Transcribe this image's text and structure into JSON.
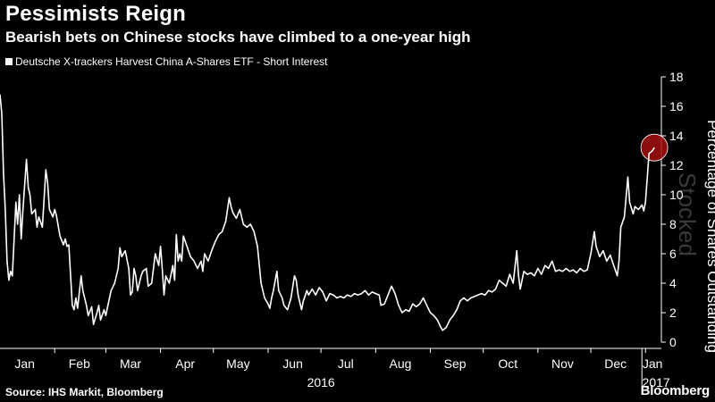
{
  "header": {
    "title": "Pessimists Reign",
    "subtitle": "Bearish bets on Chinese stocks have climbed to a one-year high"
  },
  "legend": {
    "label": "Deutsche X-trackers Harvest China A-Shares ETF - Short Interest"
  },
  "footer": {
    "source": "Source: IHS Markit, Bloomberg",
    "brand": "Bloomberg"
  },
  "watermark": "Stocked",
  "chart_data": {
    "type": "line",
    "title": "Pessimists Reign",
    "ylabel": "Percentage of Shares Outstanding",
    "ylim": [
      0,
      18
    ],
    "yticks": [
      0,
      2,
      4,
      6,
      8,
      10,
      12,
      14,
      16,
      18
    ],
    "xlim": [
      "2016-01-01",
      "2017-01-10"
    ],
    "xticks": [
      {
        "date": "2016-01-15",
        "label": "Jan"
      },
      {
        "date": "2016-02-15",
        "label": "Feb"
      },
      {
        "date": "2016-03-15",
        "label": "Mar"
      },
      {
        "date": "2016-04-15",
        "label": "Apr"
      },
      {
        "date": "2016-05-15",
        "label": "May"
      },
      {
        "date": "2016-06-15",
        "label": "Jun"
      },
      {
        "date": "2016-07-15",
        "label": "Jul"
      },
      {
        "date": "2016-08-15",
        "label": "Aug"
      },
      {
        "date": "2016-09-15",
        "label": "Sep"
      },
      {
        "date": "2016-10-15",
        "label": "Oct"
      },
      {
        "date": "2016-11-15",
        "label": "Nov"
      },
      {
        "date": "2016-12-15",
        "label": "Dec"
      },
      {
        "date": "2017-01-05",
        "label": "Jan"
      }
    ],
    "year_labels": [
      {
        "date": "2016-07-01",
        "label": "2016"
      },
      {
        "date": "2017-01-05",
        "label": "2017"
      }
    ],
    "grid": false,
    "highlight": {
      "date": "2017-01-06",
      "value": 13.2
    },
    "series": [
      {
        "name": "Deutsche X-trackers Harvest China A-Shares ETF - Short Interest",
        "color": "#ffffff",
        "points": [
          [
            "2016-01-01",
            16.8
          ],
          [
            "2016-01-02",
            15.5
          ],
          [
            "2016-01-03",
            11.5
          ],
          [
            "2016-01-04",
            9.0
          ],
          [
            "2016-01-05",
            5.5
          ],
          [
            "2016-01-06",
            4.2
          ],
          [
            "2016-01-07",
            4.8
          ],
          [
            "2016-01-08",
            4.5
          ],
          [
            "2016-01-10",
            9.5
          ],
          [
            "2016-01-11",
            8.0
          ],
          [
            "2016-01-12",
            10.0
          ],
          [
            "2016-01-13",
            7.0
          ],
          [
            "2016-01-14",
            9.0
          ],
          [
            "2016-01-16",
            12.4
          ],
          [
            "2016-01-17",
            10.5
          ],
          [
            "2016-01-18",
            10.0
          ],
          [
            "2016-01-19",
            8.7
          ],
          [
            "2016-01-21",
            9.0
          ],
          [
            "2016-01-22",
            7.8
          ],
          [
            "2016-01-23",
            8.5
          ],
          [
            "2016-01-25",
            7.8
          ],
          [
            "2016-01-27",
            11.7
          ],
          [
            "2016-01-28",
            10.8
          ],
          [
            "2016-01-29",
            9.0
          ],
          [
            "2016-01-31",
            8.5
          ],
          [
            "2016-02-01",
            9.0
          ],
          [
            "2016-02-02",
            8.6
          ],
          [
            "2016-02-04",
            7.2
          ],
          [
            "2016-02-06",
            6.6
          ],
          [
            "2016-02-07",
            7.0
          ],
          [
            "2016-02-08",
            6.5
          ],
          [
            "2016-02-09",
            6.6
          ],
          [
            "2016-02-11",
            2.5
          ],
          [
            "2016-02-12",
            2.2
          ],
          [
            "2016-02-13",
            3.0
          ],
          [
            "2016-02-14",
            2.3
          ],
          [
            "2016-02-16",
            4.5
          ],
          [
            "2016-02-17",
            3.5
          ],
          [
            "2016-02-19",
            2.5
          ],
          [
            "2016-02-20",
            1.8
          ],
          [
            "2016-02-22",
            2.4
          ],
          [
            "2016-02-23",
            1.2
          ],
          [
            "2016-02-25",
            2.0
          ],
          [
            "2016-02-26",
            2.5
          ],
          [
            "2016-02-27",
            1.5
          ],
          [
            "2016-02-29",
            2.2
          ],
          [
            "2016-03-01",
            1.8
          ],
          [
            "2016-03-02",
            2.4
          ],
          [
            "2016-03-04",
            3.5
          ],
          [
            "2016-03-06",
            4.0
          ],
          [
            "2016-03-08",
            5.0
          ],
          [
            "2016-03-09",
            6.4
          ],
          [
            "2016-03-10",
            5.8
          ],
          [
            "2016-03-12",
            6.2
          ],
          [
            "2016-03-14",
            5.0
          ],
          [
            "2016-03-15",
            3.2
          ],
          [
            "2016-03-16",
            3.4
          ],
          [
            "2016-03-17",
            5.0
          ],
          [
            "2016-03-18",
            4.5
          ],
          [
            "2016-03-19",
            3.5
          ],
          [
            "2016-03-21",
            4.5
          ],
          [
            "2016-03-22",
            4.8
          ],
          [
            "2016-03-24",
            5.0
          ],
          [
            "2016-03-25",
            3.8
          ],
          [
            "2016-03-27",
            4.0
          ],
          [
            "2016-03-29",
            6.0
          ],
          [
            "2016-03-31",
            5.2
          ],
          [
            "2016-04-01",
            6.5
          ],
          [
            "2016-04-02",
            5.0
          ],
          [
            "2016-04-03",
            3.2
          ],
          [
            "2016-04-04",
            4.5
          ],
          [
            "2016-04-06",
            4.0
          ],
          [
            "2016-04-08",
            5.2
          ],
          [
            "2016-04-09",
            4.2
          ],
          [
            "2016-04-10",
            7.3
          ],
          [
            "2016-04-11",
            5.5
          ],
          [
            "2016-04-12",
            6.0
          ],
          [
            "2016-04-13",
            5.5
          ],
          [
            "2016-04-14",
            7.2
          ],
          [
            "2016-04-16",
            6.5
          ],
          [
            "2016-04-18",
            5.8
          ],
          [
            "2016-04-20",
            5.5
          ],
          [
            "2016-04-22",
            5.0
          ],
          [
            "2016-04-24",
            5.5
          ],
          [
            "2016-04-25",
            4.8
          ],
          [
            "2016-04-26",
            6.0
          ],
          [
            "2016-04-28",
            5.5
          ],
          [
            "2016-04-30",
            6.2
          ],
          [
            "2016-05-02",
            6.8
          ],
          [
            "2016-05-04",
            7.3
          ],
          [
            "2016-05-06",
            7.5
          ],
          [
            "2016-05-08",
            8.2
          ],
          [
            "2016-05-10",
            9.8
          ],
          [
            "2016-05-11",
            9.2
          ],
          [
            "2016-05-12",
            8.8
          ],
          [
            "2016-05-14",
            8.4
          ],
          [
            "2016-05-16",
            9.0
          ],
          [
            "2016-05-18",
            8.0
          ],
          [
            "2016-05-20",
            7.8
          ],
          [
            "2016-05-22",
            8.0
          ],
          [
            "2016-05-24",
            7.5
          ],
          [
            "2016-05-26",
            6.5
          ],
          [
            "2016-05-28",
            4.0
          ],
          [
            "2016-05-30",
            3.0
          ],
          [
            "2016-06-01",
            2.6
          ],
          [
            "2016-06-02",
            2.3
          ],
          [
            "2016-06-03",
            3.0
          ],
          [
            "2016-06-04",
            3.5
          ],
          [
            "2016-06-06",
            4.8
          ],
          [
            "2016-06-07",
            3.5
          ],
          [
            "2016-06-09",
            3.0
          ],
          [
            "2016-06-10",
            2.5
          ],
          [
            "2016-06-12",
            2.2
          ],
          [
            "2016-06-14",
            3.0
          ],
          [
            "2016-06-16",
            4.5
          ],
          [
            "2016-06-17",
            4.2
          ],
          [
            "2016-06-18",
            3.2
          ],
          [
            "2016-06-20",
            2.2
          ],
          [
            "2016-06-21",
            2.8
          ],
          [
            "2016-06-23",
            3.5
          ],
          [
            "2016-06-24",
            3.2
          ],
          [
            "2016-06-26",
            3.6
          ],
          [
            "2016-06-28",
            3.2
          ],
          [
            "2016-06-30",
            3.7
          ],
          [
            "2016-07-02",
            3.4
          ],
          [
            "2016-07-04",
            2.8
          ],
          [
            "2016-07-06",
            3.3
          ],
          [
            "2016-07-08",
            3.2
          ],
          [
            "2016-07-10",
            3.0
          ],
          [
            "2016-07-12",
            3.1
          ],
          [
            "2016-07-14",
            3.0
          ],
          [
            "2016-07-16",
            3.2
          ],
          [
            "2016-07-18",
            3.1
          ],
          [
            "2016-07-20",
            3.3
          ],
          [
            "2016-07-22",
            3.2
          ],
          [
            "2016-07-24",
            3.3
          ],
          [
            "2016-07-26",
            3.5
          ],
          [
            "2016-07-28",
            3.2
          ],
          [
            "2016-07-30",
            3.4
          ],
          [
            "2016-08-01",
            3.3
          ],
          [
            "2016-08-03",
            3.2
          ],
          [
            "2016-08-04",
            2.5
          ],
          [
            "2016-08-06",
            2.6
          ],
          [
            "2016-08-08",
            3.2
          ],
          [
            "2016-08-10",
            3.8
          ],
          [
            "2016-08-12",
            3.3
          ],
          [
            "2016-08-14",
            2.5
          ],
          [
            "2016-08-16",
            2.0
          ],
          [
            "2016-08-18",
            2.2
          ],
          [
            "2016-08-20",
            2.1
          ],
          [
            "2016-08-22",
            2.6
          ],
          [
            "2016-08-24",
            2.4
          ],
          [
            "2016-08-26",
            2.6
          ],
          [
            "2016-08-28",
            3.0
          ],
          [
            "2016-08-30",
            2.5
          ],
          [
            "2016-09-01",
            2.0
          ],
          [
            "2016-09-03",
            1.8
          ],
          [
            "2016-09-05",
            1.5
          ],
          [
            "2016-09-07",
            1.0
          ],
          [
            "2016-09-08",
            0.8
          ],
          [
            "2016-09-10",
            1.0
          ],
          [
            "2016-09-12",
            1.5
          ],
          [
            "2016-09-14",
            1.8
          ],
          [
            "2016-09-16",
            2.2
          ],
          [
            "2016-09-18",
            2.8
          ],
          [
            "2016-09-20",
            3.0
          ],
          [
            "2016-09-22",
            2.8
          ],
          [
            "2016-09-24",
            3.0
          ],
          [
            "2016-09-26",
            3.1
          ],
          [
            "2016-09-28",
            3.2
          ],
          [
            "2016-09-30",
            3.3
          ],
          [
            "2016-10-02",
            3.2
          ],
          [
            "2016-10-04",
            3.5
          ],
          [
            "2016-10-06",
            3.4
          ],
          [
            "2016-10-08",
            3.6
          ],
          [
            "2016-10-10",
            4.2
          ],
          [
            "2016-10-12",
            4.0
          ],
          [
            "2016-10-14",
            3.8
          ],
          [
            "2016-10-16",
            4.6
          ],
          [
            "2016-10-18",
            4.0
          ],
          [
            "2016-10-20",
            6.2
          ],
          [
            "2016-10-21",
            4.5
          ],
          [
            "2016-10-22",
            3.6
          ],
          [
            "2016-10-24",
            4.8
          ],
          [
            "2016-10-26",
            4.6
          ],
          [
            "2016-10-28",
            4.7
          ],
          [
            "2016-10-30",
            4.5
          ],
          [
            "2016-11-01",
            5.0
          ],
          [
            "2016-11-03",
            4.6
          ],
          [
            "2016-11-05",
            5.2
          ],
          [
            "2016-11-07",
            5.0
          ],
          [
            "2016-11-09",
            5.5
          ],
          [
            "2016-11-11",
            4.8
          ],
          [
            "2016-11-13",
            4.9
          ],
          [
            "2016-11-15",
            4.8
          ],
          [
            "2016-11-17",
            5.0
          ],
          [
            "2016-11-19",
            4.8
          ],
          [
            "2016-11-21",
            4.9
          ],
          [
            "2016-11-23",
            4.7
          ],
          [
            "2016-11-25",
            5.0
          ],
          [
            "2016-11-27",
            4.8
          ],
          [
            "2016-11-29",
            4.9
          ],
          [
            "2016-12-01",
            6.0
          ],
          [
            "2016-12-03",
            7.5
          ],
          [
            "2016-12-04",
            6.5
          ],
          [
            "2016-12-06",
            5.8
          ],
          [
            "2016-12-08",
            6.2
          ],
          [
            "2016-12-10",
            5.5
          ],
          [
            "2016-12-12",
            5.9
          ],
          [
            "2016-12-14",
            5.2
          ],
          [
            "2016-12-16",
            4.5
          ],
          [
            "2016-12-17",
            5.5
          ],
          [
            "2016-12-18",
            7.8
          ],
          [
            "2016-12-20",
            8.5
          ],
          [
            "2016-12-22",
            11.2
          ],
          [
            "2016-12-23",
            9.5
          ],
          [
            "2016-12-25",
            8.7
          ],
          [
            "2016-12-26",
            9.2
          ],
          [
            "2016-12-28",
            9.0
          ],
          [
            "2016-12-30",
            9.3
          ],
          [
            "2016-12-31",
            8.9
          ],
          [
            "2017-01-01",
            9.5
          ],
          [
            "2017-01-03",
            12.8
          ],
          [
            "2017-01-04",
            12.9
          ],
          [
            "2017-01-05",
            13.0
          ],
          [
            "2017-01-06",
            13.2
          ]
        ]
      }
    ]
  }
}
